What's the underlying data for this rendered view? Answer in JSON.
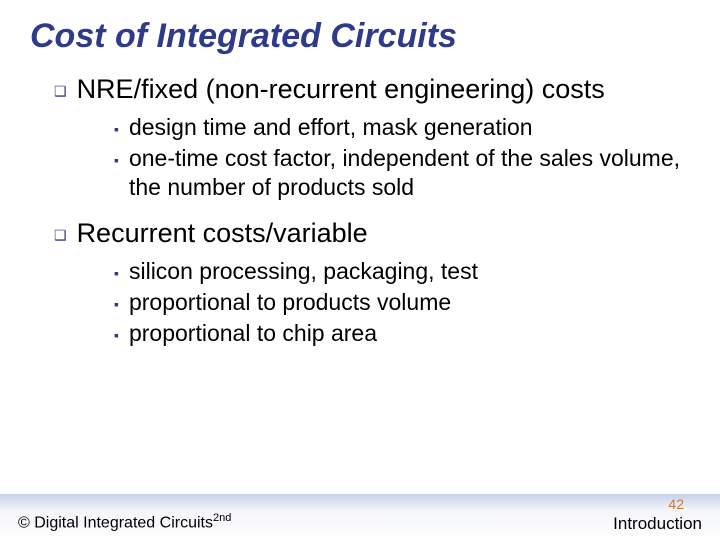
{
  "title": "Cost of Integrated Circuits",
  "bullets": {
    "0": {
      "text": "NRE/fixed (non-recurrent engineering) costs",
      "sub": [
        "design time and effort, mask generation",
        "one-time cost factor, independent of the sales volume, the number of products sold"
      ]
    },
    "1": {
      "text": "Recurrent costs/variable",
      "sub": [
        "silicon processing, packaging, test",
        "proportional to products volume",
        "proportional to chip area"
      ]
    }
  },
  "footer": {
    "copyright_prefix": "© Digital Integrated Circuits",
    "copyright_suffix": "2nd",
    "page_number": "42",
    "section": "Introduction"
  },
  "colors": {
    "accent": "#2f3a8a",
    "page_num": "#c97a3a"
  }
}
